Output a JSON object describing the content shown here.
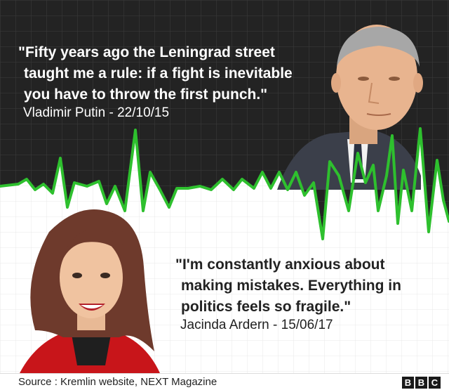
{
  "quotes": [
    {
      "lines": [
        "\"Fifty years ago the Leningrad street",
        "taught me a rule: if a fight is inevitable",
        "you have to throw the first punch.\""
      ],
      "attribution": "Vladimir Putin - 22/10/15"
    },
    {
      "lines": [
        "\"I'm constantly anxious about",
        "making mistakes. Everything in",
        "politics feels so fragile.\""
      ],
      "attribution": "Jacinda Ardern - 15/06/17"
    }
  ],
  "footer": {
    "source": "Source : Kremlin website, NEXT Magazine",
    "logo_letters": [
      "B",
      "B",
      "C"
    ]
  },
  "colors": {
    "dark_bg": "#232323",
    "grid_dark": "#3a3a3a",
    "grid_light": "#e6e6e6",
    "pulse_line": "#2ec02e"
  }
}
